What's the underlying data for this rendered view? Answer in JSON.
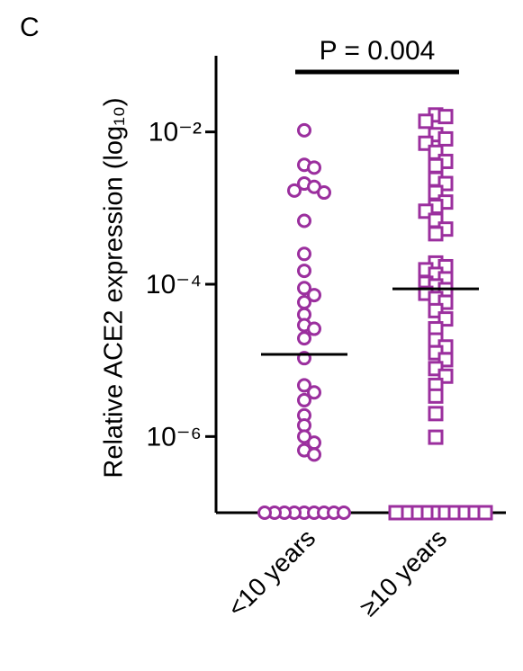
{
  "chart_data": {
    "type": "dot",
    "panel_label": "C",
    "y_label": "Relative ACE2 expression (log₁₀)",
    "annotation": "P = 0.004",
    "categories": [
      "<10 years",
      "≥10 years"
    ],
    "log_scale": true,
    "ylim": [
      1e-07,
      0.1
    ],
    "yticks": [
      {
        "value": 0.01,
        "label": "10⁻²"
      },
      {
        "value": 0.0001,
        "label": "10⁻⁴"
      },
      {
        "value": 1e-06,
        "label": "10⁻⁶"
      }
    ],
    "groups": [
      {
        "marker": "circle",
        "color": "#9b2f9e",
        "median": 1.2e-05,
        "values": [
          0.0105,
          0.0037,
          0.0034,
          0.0021,
          0.0019,
          0.0017,
          0.0016,
          0.00068,
          0.00025,
          0.00015,
          8.9e-05,
          7.2e-05,
          5.8e-05,
          4e-05,
          2.9e-05,
          2.6e-05,
          1.95e-05,
          1.07e-05,
          4.7e-06,
          3.8e-06,
          3e-06,
          1.9e-06,
          1.4e-06,
          1e-06,
          8.3e-07,
          6.6e-07,
          5.8e-07,
          1e-07,
          1e-07,
          1e-07,
          1e-07,
          1e-07,
          1e-07,
          1e-07,
          1e-07,
          1e-07
        ]
      },
      {
        "marker": "square",
        "color": "#9b2f9e",
        "median": 8.7e-05,
        "values": [
          0.0167,
          0.0159,
          0.0138,
          0.0092,
          0.0081,
          0.0071,
          0.0054,
          0.0041,
          0.0036,
          0.0024,
          0.0021,
          0.0016,
          0.0012,
          0.00105,
          0.00091,
          0.00069,
          0.00053,
          0.00046,
          0.00019,
          0.00017,
          0.000155,
          0.000135,
          0.000118,
          0.000103,
          9.5e-05,
          8.5e-05,
          7.6e-05,
          6.5e-05,
          5.8e-05,
          4.5e-05,
          3.5e-05,
          2.6e-05,
          1.85e-05,
          1.5e-05,
          1.26e-05,
          1.02e-05,
          7.8e-06,
          6.2e-06,
          4.7e-06,
          3.4e-06,
          2e-06,
          9.8e-07,
          1e-07,
          1e-07,
          1e-07,
          1e-07,
          1e-07,
          1e-07,
          1e-07,
          1e-07,
          1e-07,
          1e-07
        ]
      }
    ]
  }
}
